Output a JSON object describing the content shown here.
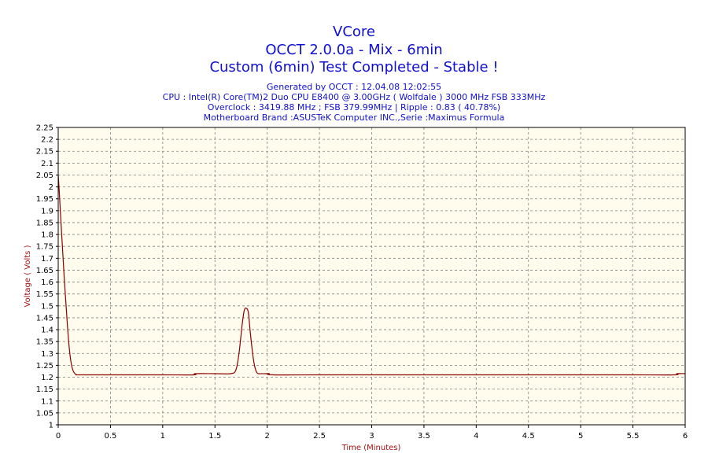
{
  "chart_data": {
    "type": "line",
    "title": "VCore",
    "subtitle": "OCCT 2.0.0a - Mix - 6min",
    "status": "Custom (6min) Test Completed - Stable !",
    "info_lines": [
      "Generated by OCCT : 12.04.08 12:02:55",
      "CPU : Intel(R) Core(TM)2 Duo CPU E8400 @ 3.00GHz ( Wolfdale ) 3000 MHz FSB 333MHz",
      "Overclock : 3419.88 MHz ; FSB 379.99MHz | Ripple : 0.83 ( 40.78%)",
      "Motherboard Brand :ASUSTeK Computer INC.,Serie :Maximus Formula"
    ],
    "xlabel": "Time (Minutes)",
    "ylabel": "Voltage ( Volts )",
    "xlim": [
      0,
      6
    ],
    "ylim": [
      1,
      2.25
    ],
    "x_ticks": [
      "0",
      "0.5",
      "1",
      "1.5",
      "2",
      "2.5",
      "3",
      "3.5",
      "4",
      "4.5",
      "5",
      "5.5",
      "6"
    ],
    "y_ticks": [
      "1",
      "1.05",
      "1.1",
      "1.15",
      "1.2",
      "1.25",
      "1.3",
      "1.35",
      "1.4",
      "1.45",
      "1.5",
      "1.55",
      "1.6",
      "1.65",
      "1.7",
      "1.75",
      "1.8",
      "1.85",
      "1.9",
      "1.95",
      "2",
      "2.05",
      "2.1",
      "2.15",
      "2.2",
      "2.25"
    ],
    "grid": true,
    "colors": {
      "line": "#8b0000",
      "plot_background": "#fffcee",
      "grid": "#808080",
      "title": "#1010d0",
      "axis_label": "#a01010"
    },
    "series": [
      {
        "x": [
          0,
          0.01,
          0.02,
          0.04,
          0.06,
          0.08,
          0.1,
          0.12,
          0.14,
          0.16,
          0.18,
          0.2,
          0.5,
          1.0,
          1.3,
          1.31,
          1.5,
          1.65,
          1.7,
          1.73,
          1.76,
          1.78,
          1.8,
          1.82,
          1.84,
          1.87,
          1.9,
          1.95,
          2.0,
          2.02,
          2.05,
          2.5,
          3.0,
          3.5,
          4.0,
          4.5,
          5.0,
          5.5,
          5.9,
          5.92,
          6.0
        ],
        "y": [
          2.05,
          1.98,
          1.9,
          1.75,
          1.6,
          1.47,
          1.35,
          1.27,
          1.23,
          1.215,
          1.21,
          1.21,
          1.21,
          1.21,
          1.21,
          1.215,
          1.215,
          1.215,
          1.23,
          1.3,
          1.42,
          1.48,
          1.49,
          1.47,
          1.38,
          1.27,
          1.22,
          1.215,
          1.215,
          1.215,
          1.21,
          1.21,
          1.21,
          1.21,
          1.21,
          1.21,
          1.21,
          1.21,
          1.21,
          1.215,
          1.215
        ]
      }
    ]
  }
}
